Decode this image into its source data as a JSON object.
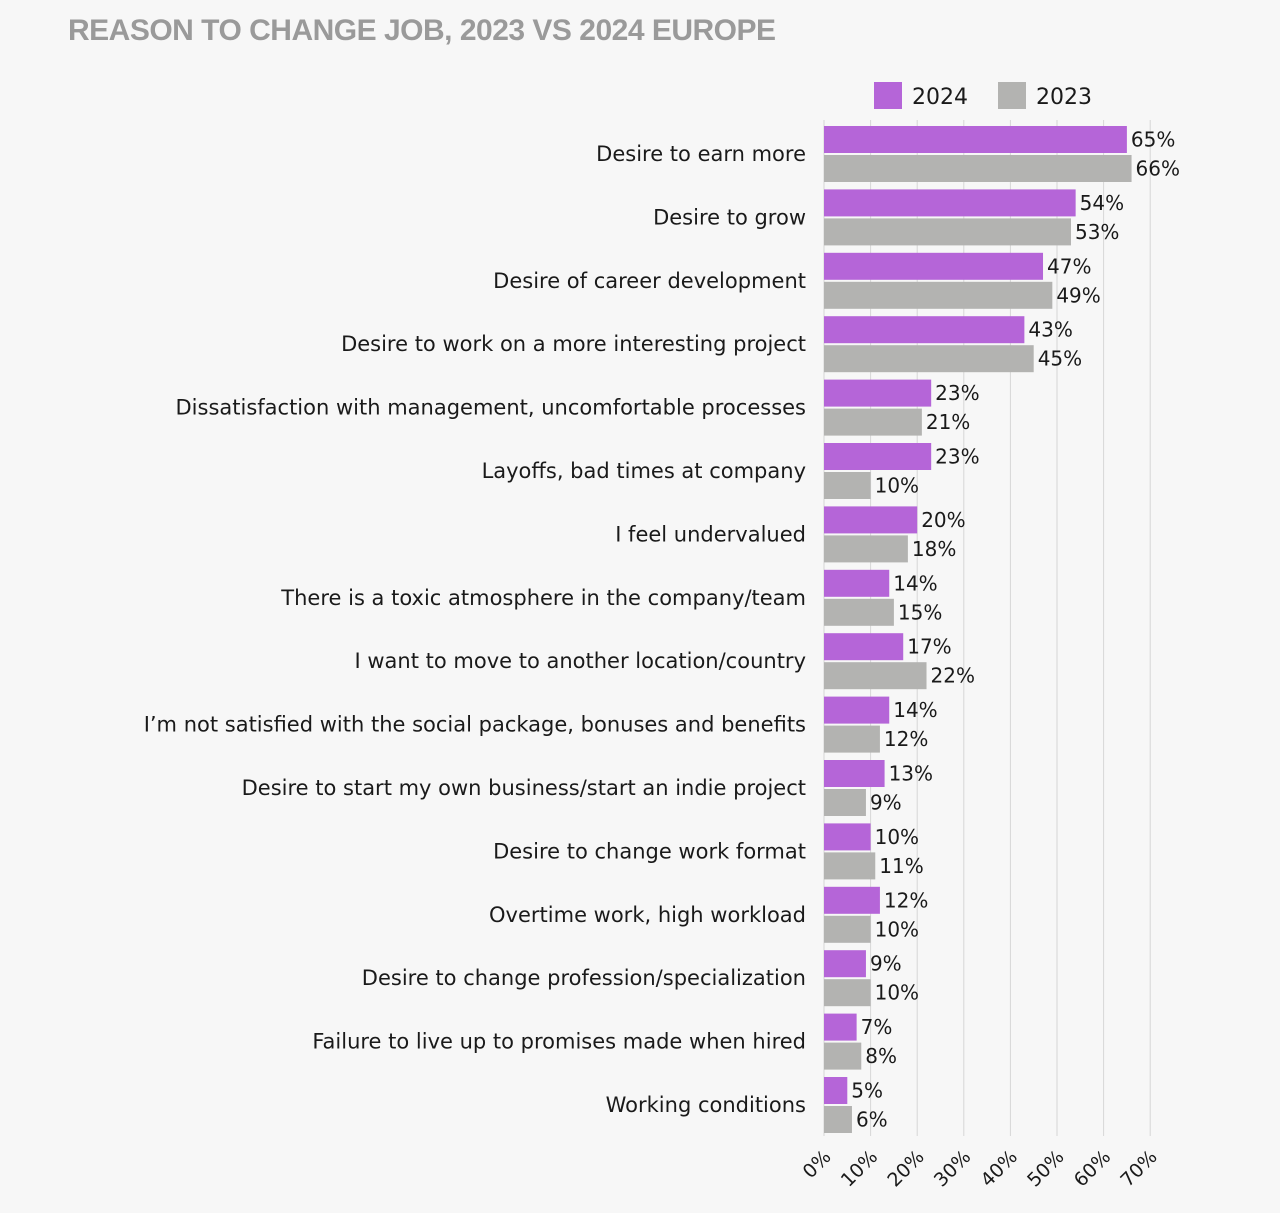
{
  "title": "REASON TO CHANGE JOB, 2023 VS 2024 EUROPE",
  "colors": {
    "series_2024": "#b565d8",
    "series_2023": "#b3b3b1",
    "title": "#9a9a9a",
    "grid": "#d6d6d6"
  },
  "chart_data": {
    "type": "bar",
    "orientation": "horizontal",
    "title": "REASON TO CHANGE JOB, 2023 VS 2024 EUROPE",
    "categories": [
      "Desire to earn more",
      "Desire to grow",
      "Desire of career development",
      "Desire to work on a more interesting project",
      "Dissatisfaction with management, uncomfortable processes",
      "Layoffs, bad times at company",
      "I feel undervalued",
      "There is a toxic atmosphere in the company/team",
      "I want to move to another location/country",
      "I’m not satisfied with the social package, bonuses and benefits",
      "Desire to start my own business/start an indie project",
      "Desire to change work format",
      "Overtime work, high workload",
      "Desire to change profession/specialization",
      "Failure to live up to promises made when hired",
      "Working conditions"
    ],
    "series": [
      {
        "name": "2024",
        "values": [
          65,
          54,
          47,
          43,
          23,
          23,
          20,
          14,
          17,
          14,
          13,
          10,
          12,
          9,
          7,
          5
        ],
        "labels": [
          "65%",
          "54%",
          "47%",
          "43%",
          "23%",
          "23%",
          "20%",
          "14%",
          "17%",
          "14%",
          "13%",
          "10%",
          "12%",
          "9%",
          "7%",
          "5%"
        ]
      },
      {
        "name": "2023",
        "values": [
          66,
          53,
          49,
          45,
          21,
          10,
          18,
          15,
          22,
          12,
          9,
          11,
          10,
          10,
          8,
          6
        ],
        "labels": [
          "66%",
          "53%",
          "49%",
          "45%",
          "21%",
          "10%",
          "18%",
          "15%",
          "22%",
          "12%",
          "9%",
          "11%",
          "10%",
          "10%",
          "8%",
          "6%"
        ]
      }
    ],
    "xlim": [
      0,
      70
    ],
    "xticks": [
      "0%",
      "10%",
      "20%",
      "30%",
      "40%",
      "50%",
      "60%",
      "70%"
    ],
    "grid": true,
    "legend_position": "top-right",
    "xlabel": "",
    "ylabel": ""
  }
}
